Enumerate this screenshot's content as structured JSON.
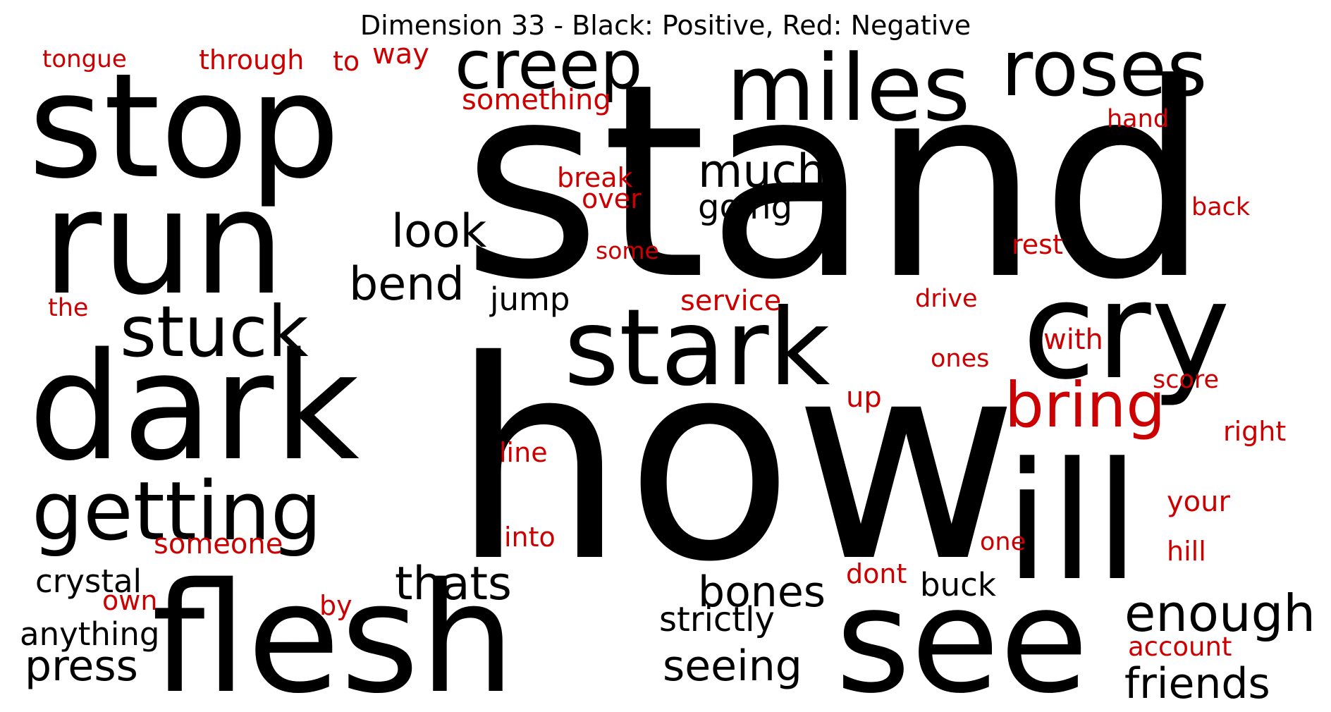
{
  "title": "Dimension 33 - Black: Positive, Red: Negative",
  "colors": {
    "positive": "#000000",
    "negative": "#cc0000"
  },
  "words": [
    {
      "text": "stand",
      "polarity": "positive"
    },
    {
      "text": "how",
      "polarity": "positive"
    },
    {
      "text": "stop",
      "polarity": "positive"
    },
    {
      "text": "run",
      "polarity": "positive"
    },
    {
      "text": "dark",
      "polarity": "positive"
    },
    {
      "text": "flesh",
      "polarity": "positive"
    },
    {
      "text": "see",
      "polarity": "positive"
    },
    {
      "text": "ill",
      "polarity": "positive"
    },
    {
      "text": "cry",
      "polarity": "positive"
    },
    {
      "text": "stark",
      "polarity": "positive"
    },
    {
      "text": "miles",
      "polarity": "positive"
    },
    {
      "text": "roses",
      "polarity": "positive"
    },
    {
      "text": "getting",
      "polarity": "positive"
    },
    {
      "text": "stuck",
      "polarity": "positive"
    },
    {
      "text": "creep",
      "polarity": "positive"
    },
    {
      "text": "bring",
      "polarity": "negative"
    },
    {
      "text": "much",
      "polarity": "positive"
    },
    {
      "text": "look",
      "polarity": "positive"
    },
    {
      "text": "bend",
      "polarity": "positive"
    },
    {
      "text": "thats",
      "polarity": "positive"
    },
    {
      "text": "bones",
      "polarity": "positive"
    },
    {
      "text": "enough",
      "polarity": "positive"
    },
    {
      "text": "friends",
      "polarity": "positive"
    },
    {
      "text": "seeing",
      "polarity": "positive"
    },
    {
      "text": "press",
      "polarity": "positive"
    },
    {
      "text": "strictly",
      "polarity": "positive"
    },
    {
      "text": "going",
      "polarity": "positive"
    },
    {
      "text": "jump",
      "polarity": "positive"
    },
    {
      "text": "crystal",
      "polarity": "positive"
    },
    {
      "text": "anything",
      "polarity": "positive"
    },
    {
      "text": "buck",
      "polarity": "positive"
    },
    {
      "text": "tongue",
      "polarity": "negative"
    },
    {
      "text": "through",
      "polarity": "negative"
    },
    {
      "text": "to",
      "polarity": "negative"
    },
    {
      "text": "way",
      "polarity": "negative"
    },
    {
      "text": "something",
      "polarity": "negative"
    },
    {
      "text": "hand",
      "polarity": "negative"
    },
    {
      "text": "break",
      "polarity": "negative"
    },
    {
      "text": "over",
      "polarity": "negative"
    },
    {
      "text": "back",
      "polarity": "negative"
    },
    {
      "text": "some",
      "polarity": "negative"
    },
    {
      "text": "rest",
      "polarity": "negative"
    },
    {
      "text": "the",
      "polarity": "negative"
    },
    {
      "text": "service",
      "polarity": "negative"
    },
    {
      "text": "drive",
      "polarity": "negative"
    },
    {
      "text": "with",
      "polarity": "negative"
    },
    {
      "text": "ones",
      "polarity": "negative"
    },
    {
      "text": "score",
      "polarity": "negative"
    },
    {
      "text": "up",
      "polarity": "negative"
    },
    {
      "text": "right",
      "polarity": "negative"
    },
    {
      "text": "line",
      "polarity": "negative"
    },
    {
      "text": "your",
      "polarity": "negative"
    },
    {
      "text": "someone",
      "polarity": "negative"
    },
    {
      "text": "into",
      "polarity": "negative"
    },
    {
      "text": "one",
      "polarity": "negative"
    },
    {
      "text": "hill",
      "polarity": "negative"
    },
    {
      "text": "dont",
      "polarity": "negative"
    },
    {
      "text": "own",
      "polarity": "negative"
    },
    {
      "text": "by",
      "polarity": "negative"
    },
    {
      "text": "account",
      "polarity": "negative"
    }
  ]
}
